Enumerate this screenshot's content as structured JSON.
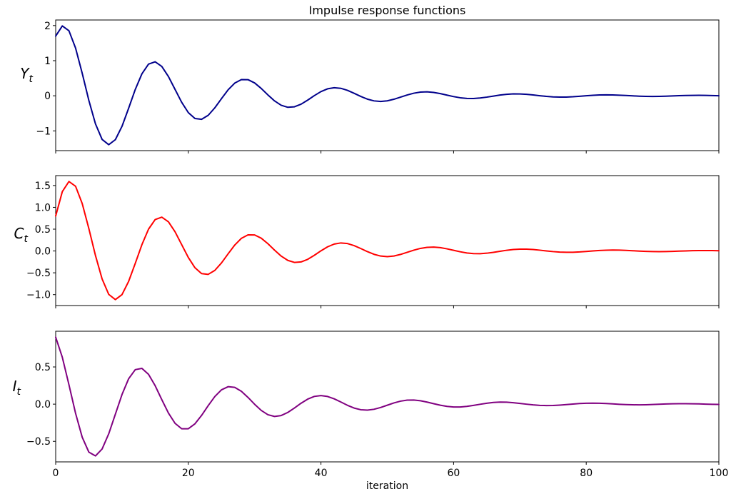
{
  "title": "Impulse response functions",
  "xlabel": "iteration",
  "chart_data": {
    "type": "line",
    "title": "Impulse response functions",
    "xlabel": "iteration",
    "grid": false,
    "legend": "none",
    "x_range": [
      0,
      100
    ],
    "x_step": 1,
    "x_ticks": [
      0,
      20,
      40,
      60,
      80,
      100
    ],
    "x_tick_labels": [
      "0",
      "20",
      "40",
      "60",
      "80",
      "100"
    ],
    "subplots": [
      {
        "name": "Y_t",
        "ylabel_base": "Y",
        "ylabel_sub": "t",
        "color": "#00008b",
        "ylim": [
          -1.562,
          2.159
        ],
        "y_ticks": [
          2,
          1,
          0,
          -1
        ],
        "y_tick_labels": [
          "2",
          "1",
          "0",
          "−1"
        ],
        "values": [
          1.7,
          1.99,
          1.853,
          1.3591,
          0.6428,
          -0.1305,
          -0.8003,
          -1.2431,
          -1.393,
          -1.2493,
          -0.8701,
          -0.3548,
          0.1799,
          0.6252,
          0.9009,
          0.9688,
          0.8362,
          0.5496,
          0.1818,
          -0.1856,
          -0.4792,
          -0.6476,
          -0.6696,
          -0.5555,
          -0.3417,
          -0.0809,
          0.1699,
          0.3617,
          0.462,
          0.4598,
          0.3659,
          0.2082,
          0.0246,
          -0.1455,
          -0.2695,
          -0.3273,
          -0.3138,
          -0.2389,
          -0.1237,
          0.0047,
          0.1193,
          0.1986,
          0.2303,
          0.2127,
          0.1543,
          0.0709,
          -0.0183,
          -0.095,
          -0.1449,
          -0.1609,
          -0.1432,
          -0.0985,
          -0.0386,
          0.023,
          0.0738,
          0.1048,
          0.1118,
          0.0957,
          0.062,
          0.0194,
          -0.0229,
          -0.0564,
          -0.0752,
          -0.0772,
          -0.0634,
          -0.0384,
          -0.0082,
          0.0206,
          0.0424,
          0.0536,
          0.0529,
          0.0417,
          0.0233,
          0.0021,
          -0.0175,
          -0.0315,
          -0.0379,
          -0.0361,
          -0.0272,
          -0.0137,
          0.0011,
          0.0142,
          0.0232,
          0.0266,
          0.0244,
          0.0175,
          0.0078,
          -0.0025,
          -0.0113,
          -0.0169,
          -0.0186,
          -0.0164,
          -0.0111,
          -0.0042,
          0.0029,
          0.0087,
          0.0122,
          0.0129,
          0.0109,
          0.007,
          0.002
        ]
      },
      {
        "name": "C_t",
        "ylabel_base": "C",
        "ylabel_sub": "t",
        "color": "#ff0000",
        "ylim": [
          -1.25,
          1.727
        ],
        "y_ticks": [
          1.5,
          1.0,
          0.5,
          0.0,
          -0.5,
          -1.0
        ],
        "y_tick_labels": [
          "1.5",
          "1.0",
          "0.5",
          "0.0",
          "−0.5",
          "−1.0"
        ],
        "values": [
          0.8,
          1.36,
          1.592,
          1.4824,
          1.0873,
          0.5142,
          -0.1044,
          -0.6402,
          -0.9945,
          -1.1144,
          -0.9994,
          -0.6961,
          -0.2838,
          0.1439,
          0.5002,
          0.7207,
          0.775,
          0.669,
          0.4397,
          0.1454,
          -0.1485,
          -0.3834,
          -0.5181,
          -0.5357,
          -0.4444,
          -0.2734,
          -0.0647,
          0.1359,
          0.2894,
          0.3696,
          0.3678,
          0.2927,
          0.1666,
          0.0197,
          -0.1164,
          -0.2156,
          -0.2618,
          -0.251,
          -0.1911,
          -0.099,
          0.0038,
          0.0954,
          0.1589,
          0.1842,
          0.1702,
          0.1234,
          0.0567,
          -0.0146,
          -0.076,
          -0.1159,
          -0.1287,
          -0.1146,
          -0.0788,
          -0.0309,
          0.0184,
          0.059,
          0.0838,
          0.0894,
          0.0766,
          0.0496,
          0.0155,
          -0.0183,
          -0.0451,
          -0.0602,
          -0.0618,
          -0.0507,
          -0.0307,
          -0.0066,
          0.0165,
          0.0339,
          0.0429,
          0.0423,
          0.0334,
          0.0186,
          0.0017,
          -0.014,
          -0.0252,
          -0.0303,
          -0.0289,
          -0.0218,
          -0.011,
          0.0009,
          0.0114,
          0.0186,
          0.0213,
          0.0195,
          0.014,
          0.0062,
          -0.002,
          -0.009,
          -0.0135,
          -0.0149,
          -0.0131,
          -0.0089,
          -0.0034,
          0.0023,
          0.007,
          0.0098,
          0.0103,
          0.0087,
          0.0056
        ]
      },
      {
        "name": "I_t",
        "ylabel_base": "I",
        "ylabel_sub": "t",
        "color": "#800080",
        "ylim": [
          -0.776,
          0.98
        ],
        "y_ticks": [
          0.5,
          0.0,
          -0.5
        ],
        "y_tick_labels": [
          "0.5",
          "0.0",
          "−0.5"
        ],
        "values": [
          0.9,
          0.63,
          0.261,
          -0.1233,
          -0.4445,
          -0.6447,
          -0.696,
          -0.6028,
          -0.3985,
          -0.1349,
          0.1293,
          0.3413,
          0.4638,
          0.4812,
          0.4008,
          0.2481,
          0.0611,
          -0.1193,
          -0.2579,
          -0.331,
          -0.3307,
          -0.2642,
          -0.1516,
          -0.0198,
          0.1027,
          0.1924,
          0.2347,
          0.2257,
          0.1726,
          0.0903,
          -0.002,
          -0.0845,
          -0.1419,
          -0.1652,
          -0.1531,
          -0.1116,
          -0.052,
          0.0122,
          0.0674,
          0.1037,
          0.1156,
          0.1031,
          0.0714,
          0.0285,
          -0.0158,
          -0.0526,
          -0.0751,
          -0.0803,
          -0.069,
          -0.0449,
          -0.0144,
          0.0159,
          0.0402,
          0.0539,
          0.0554,
          0.0457,
          0.0279,
          0.0063,
          -0.0145,
          -0.0303,
          -0.0383,
          -0.0381,
          -0.0302,
          -0.0169,
          -0.0018,
          0.0124,
          0.0225,
          0.0272,
          0.0259,
          0.0196,
          0.0101,
          -0.0006,
          -0.0101,
          -0.0166,
          -0.0191,
          -0.0176,
          -0.0126,
          -0.0058,
          0.0016,
          0.008,
          0.0122,
          0.0133,
          0.0118,
          0.0081,
          0.0031,
          -0.002,
          -0.0062,
          -0.0087,
          -0.0093,
          -0.0079,
          -0.005,
          -0.0015,
          0.002,
          0.0048,
          0.0062,
          0.0064,
          0.0052,
          0.0032,
          0.0006,
          -0.0018,
          -0.0035
        ]
      }
    ]
  }
}
